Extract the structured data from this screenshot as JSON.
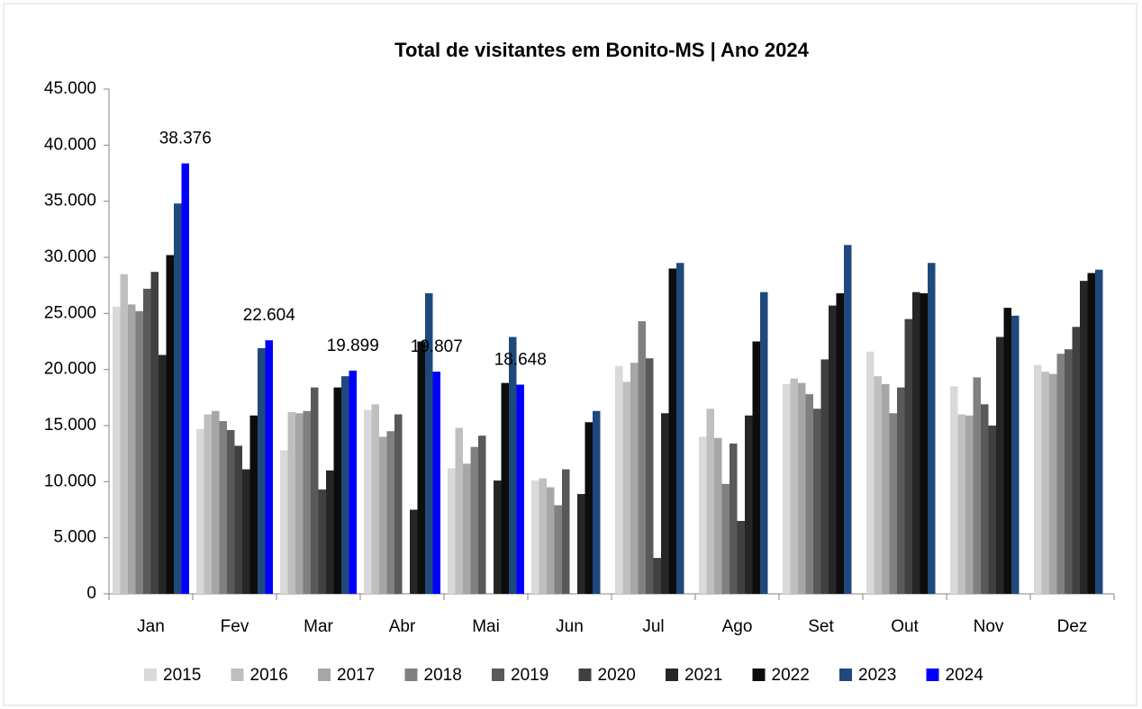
{
  "chart_data": {
    "type": "bar",
    "title": "Total de visitantes em Bonito-MS | Ano 2024",
    "categories": [
      "Jan",
      "Fev",
      "Mar",
      "Abr",
      "Mai",
      "Jun",
      "Jul",
      "Ago",
      "Set",
      "Out",
      "Nov",
      "Dez"
    ],
    "ylim": [
      0,
      45000
    ],
    "yticks": [
      0,
      {
        "value": 5000,
        "label": "5.000"
      },
      {
        "value": 10000,
        "label": "10.000"
      },
      {
        "value": 15000,
        "label": "15.000"
      },
      {
        "value": 20000,
        "label": "20.000"
      },
      {
        "value": 25000,
        "label": "25.000"
      },
      {
        "value": 30000,
        "label": "30.000"
      },
      {
        "value": 35000,
        "label": "35.000"
      },
      {
        "value": 40000,
        "label": "40.000"
      },
      {
        "value": 45000,
        "label": "45.000"
      }
    ],
    "grid": false,
    "legend": "bottom",
    "series": [
      {
        "name": "2015",
        "color": "#d9d9d9",
        "values": [
          25600,
          14700,
          12800,
          16400,
          11200,
          10100,
          20300,
          14000,
          18700,
          21600,
          18500,
          20400
        ]
      },
      {
        "name": "2016",
        "color": "#bfbfbf",
        "values": [
          28500,
          16000,
          16200,
          16900,
          14800,
          10300,
          18900,
          16500,
          19200,
          19400,
          16000,
          19800
        ]
      },
      {
        "name": "2017",
        "color": "#a6a6a6",
        "values": [
          25800,
          16300,
          16100,
          14000,
          11600,
          9500,
          20600,
          13900,
          18800,
          18700,
          15900,
          19600
        ]
      },
      {
        "name": "2018",
        "color": "#808080",
        "values": [
          25200,
          15400,
          16300,
          14500,
          13100,
          7900,
          24300,
          9800,
          17800,
          16100,
          19300,
          21400
        ]
      },
      {
        "name": "2019",
        "color": "#595959",
        "values": [
          27200,
          14600,
          18400,
          16000,
          14100,
          11100,
          21000,
          13400,
          16500,
          18400,
          16900,
          21800
        ]
      },
      {
        "name": "2020",
        "color": "#404040",
        "values": [
          28700,
          13200,
          9300,
          0,
          0,
          0,
          3200,
          6500,
          20900,
          24500,
          15000,
          23800
        ]
      },
      {
        "name": "2021",
        "color": "#262626",
        "values": [
          21300,
          11100,
          11000,
          7500,
          10100,
          8900,
          16100,
          15900,
          25700,
          26900,
          22900,
          27900
        ]
      },
      {
        "name": "2022",
        "color": "#0d0d0d",
        "values": [
          30200,
          15900,
          18400,
          22500,
          18800,
          15300,
          29000,
          22500,
          26800,
          26800,
          25500,
          28600
        ]
      },
      {
        "name": "2023",
        "color": "#1f497d",
        "values": [
          34800,
          21900,
          19400,
          26800,
          22900,
          16300,
          29500,
          26900,
          31100,
          29500,
          24800,
          28900
        ]
      },
      {
        "name": "2024",
        "color": "#0000ff",
        "values": [
          38376,
          22604,
          19899,
          19807,
          18648,
          null,
          null,
          null,
          null,
          null,
          null,
          null
        ],
        "value_labels": [
          "38.376",
          "22.604",
          "19.899",
          "19.807",
          "18.648",
          null,
          null,
          null,
          null,
          null,
          null,
          null
        ]
      }
    ]
  }
}
